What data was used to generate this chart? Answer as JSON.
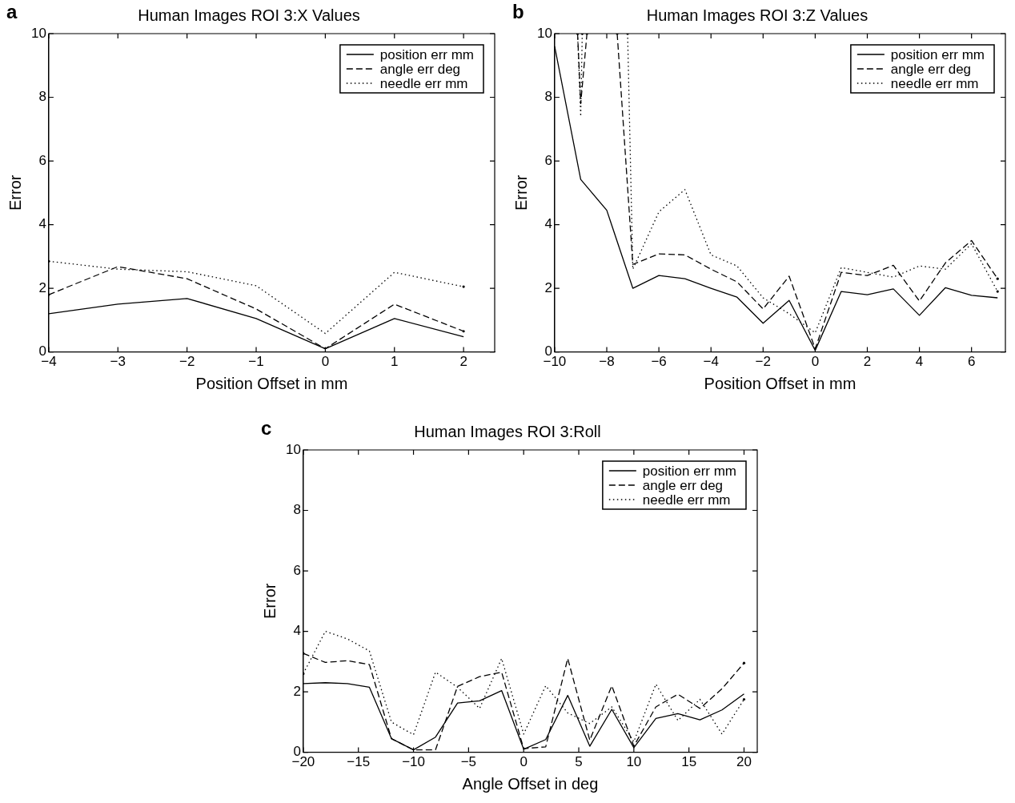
{
  "chart_data": [
    {
      "type": "line",
      "title": "Human Images ROI 3:X Values",
      "xlabel": "Position Offset in mm",
      "ylabel": "Error",
      "annotations": [
        "a"
      ],
      "x": [
        -4,
        -3,
        -2,
        -1,
        0,
        1,
        2
      ],
      "xlim": [
        -4,
        2.45
      ],
      "xticks": [
        -4,
        -3,
        -2,
        -1,
        0,
        1,
        2
      ],
      "ylim": [
        0,
        10
      ],
      "yticks": [
        0,
        2,
        4,
        6,
        8,
        10
      ],
      "legend": "top right",
      "grid": false,
      "marker": "none",
      "series": [
        {
          "name": "position err mm",
          "color": "#000000",
          "line_style": "solid",
          "values": [
            1.2,
            1.5,
            1.68,
            1.05,
            0.1,
            1.05,
            0.48
          ]
        },
        {
          "name": "angle err deg",
          "color": "#000000",
          "line_style": "dashed",
          "values": [
            1.8,
            2.68,
            2.3,
            1.35,
            0.1,
            1.5,
            0.65
          ]
        },
        {
          "name": "needle err mm",
          "color": "#000000",
          "line_style": "dotted",
          "values": [
            2.85,
            2.6,
            2.52,
            2.08,
            0.58,
            2.5,
            2.05
          ]
        }
      ]
    },
    {
      "type": "line",
      "title": "Human Images ROI 3:Z Values",
      "xlabel": "Position Offset in mm",
      "ylabel": "Error",
      "annotations": [
        "b"
      ],
      "x": [
        -10,
        -9,
        -8,
        -7,
        -6,
        -5,
        -4,
        -3,
        -2,
        -1,
        0,
        1,
        2,
        3,
        4,
        5,
        6,
        7
      ],
      "xlim": [
        -10,
        7.3
      ],
      "xticks": [
        -10,
        -8,
        -6,
        -4,
        -2,
        0,
        2,
        4,
        6
      ],
      "ylim": [
        0,
        10
      ],
      "yticks": [
        0,
        2,
        4,
        6,
        8,
        10
      ],
      "legend": "top right",
      "grid": false,
      "marker": "none",
      "series": [
        {
          "name": "position err mm",
          "color": "#000000",
          "line_style": "solid",
          "values": [
            9.6,
            5.42,
            4.45,
            2.0,
            2.4,
            2.3,
            2.0,
            1.72,
            0.9,
            1.62,
            0.05,
            1.9,
            1.8,
            1.98,
            1.15,
            2.02,
            1.78,
            1.7
          ]
        },
        {
          "name": "angle err deg",
          "color": "#000000",
          "line_style": "dashed",
          "x": [
            -9.12,
            -9,
            -8.76,
            -8,
            -7.6,
            -7,
            -6,
            -5,
            -4,
            -3,
            -2,
            -1,
            0,
            1,
            2,
            3,
            4,
            5,
            6,
            7
          ],
          "values": [
            10,
            7.8,
            10,
            null,
            10,
            2.75,
            3.08,
            3.05,
            2.6,
            2.2,
            1.35,
            2.38,
            0.1,
            2.5,
            2.4,
            2.72,
            1.6,
            2.8,
            3.5,
            2.3
          ]
        },
        {
          "name": "needle err mm",
          "color": "#000000",
          "line_style": "dotted",
          "x": [
            -9.12,
            -9,
            -8.94,
            -8,
            -7.2,
            -7,
            -6,
            -5,
            -4,
            -3,
            -2,
            -1,
            0,
            1,
            2,
            3,
            4,
            5,
            6,
            7
          ],
          "values": [
            10,
            7.4,
            10,
            null,
            10,
            2.6,
            4.4,
            5.1,
            3.05,
            2.7,
            1.7,
            1.2,
            0.6,
            2.65,
            2.5,
            2.35,
            2.7,
            2.6,
            3.4,
            1.9
          ]
        }
      ]
    },
    {
      "type": "line",
      "title": "Human Images ROI 3:Roll",
      "xlabel": "Angle Offset in deg",
      "ylabel": "Error",
      "annotations": [
        "c"
      ],
      "x": [
        -20,
        -18,
        -16,
        -14,
        -12,
        -10,
        -8,
        -6,
        -4,
        -2,
        0,
        2,
        4,
        6,
        8,
        10,
        12,
        14,
        16,
        18,
        20
      ],
      "xlim": [
        -20,
        21.2
      ],
      "xticks": [
        -20,
        -15,
        -10,
        -5,
        0,
        5,
        10,
        15,
        20
      ],
      "ylim": [
        0,
        10
      ],
      "yticks": [
        0,
        2,
        4,
        6,
        8,
        10
      ],
      "legend": "top right",
      "grid": false,
      "marker": "none",
      "series": [
        {
          "name": "position err mm",
          "color": "#000000",
          "line_style": "solid",
          "values": [
            2.27,
            2.3,
            2.27,
            2.15,
            0.45,
            0.08,
            0.5,
            1.63,
            1.7,
            2.04,
            0.1,
            0.42,
            1.88,
            0.2,
            1.42,
            0.15,
            1.12,
            1.28,
            1.07,
            1.4,
            1.93
          ]
        },
        {
          "name": "angle err deg",
          "color": "#000000",
          "line_style": "dashed",
          "values": [
            3.27,
            2.97,
            3.03,
            2.9,
            0.45,
            0.08,
            0.08,
            2.18,
            2.5,
            2.65,
            0.12,
            0.18,
            3.1,
            0.4,
            2.2,
            0.2,
            1.5,
            1.92,
            1.45,
            2.1,
            2.95
          ]
        },
        {
          "name": "needle err mm",
          "color": "#000000",
          "line_style": "dotted",
          "values": [
            2.6,
            4.0,
            3.75,
            3.35,
            1.0,
            0.58,
            2.65,
            2.15,
            1.45,
            3.1,
            0.6,
            2.2,
            1.3,
            0.95,
            1.5,
            0.35,
            2.25,
            1.05,
            1.75,
            0.6,
            1.75
          ]
        }
      ]
    }
  ]
}
